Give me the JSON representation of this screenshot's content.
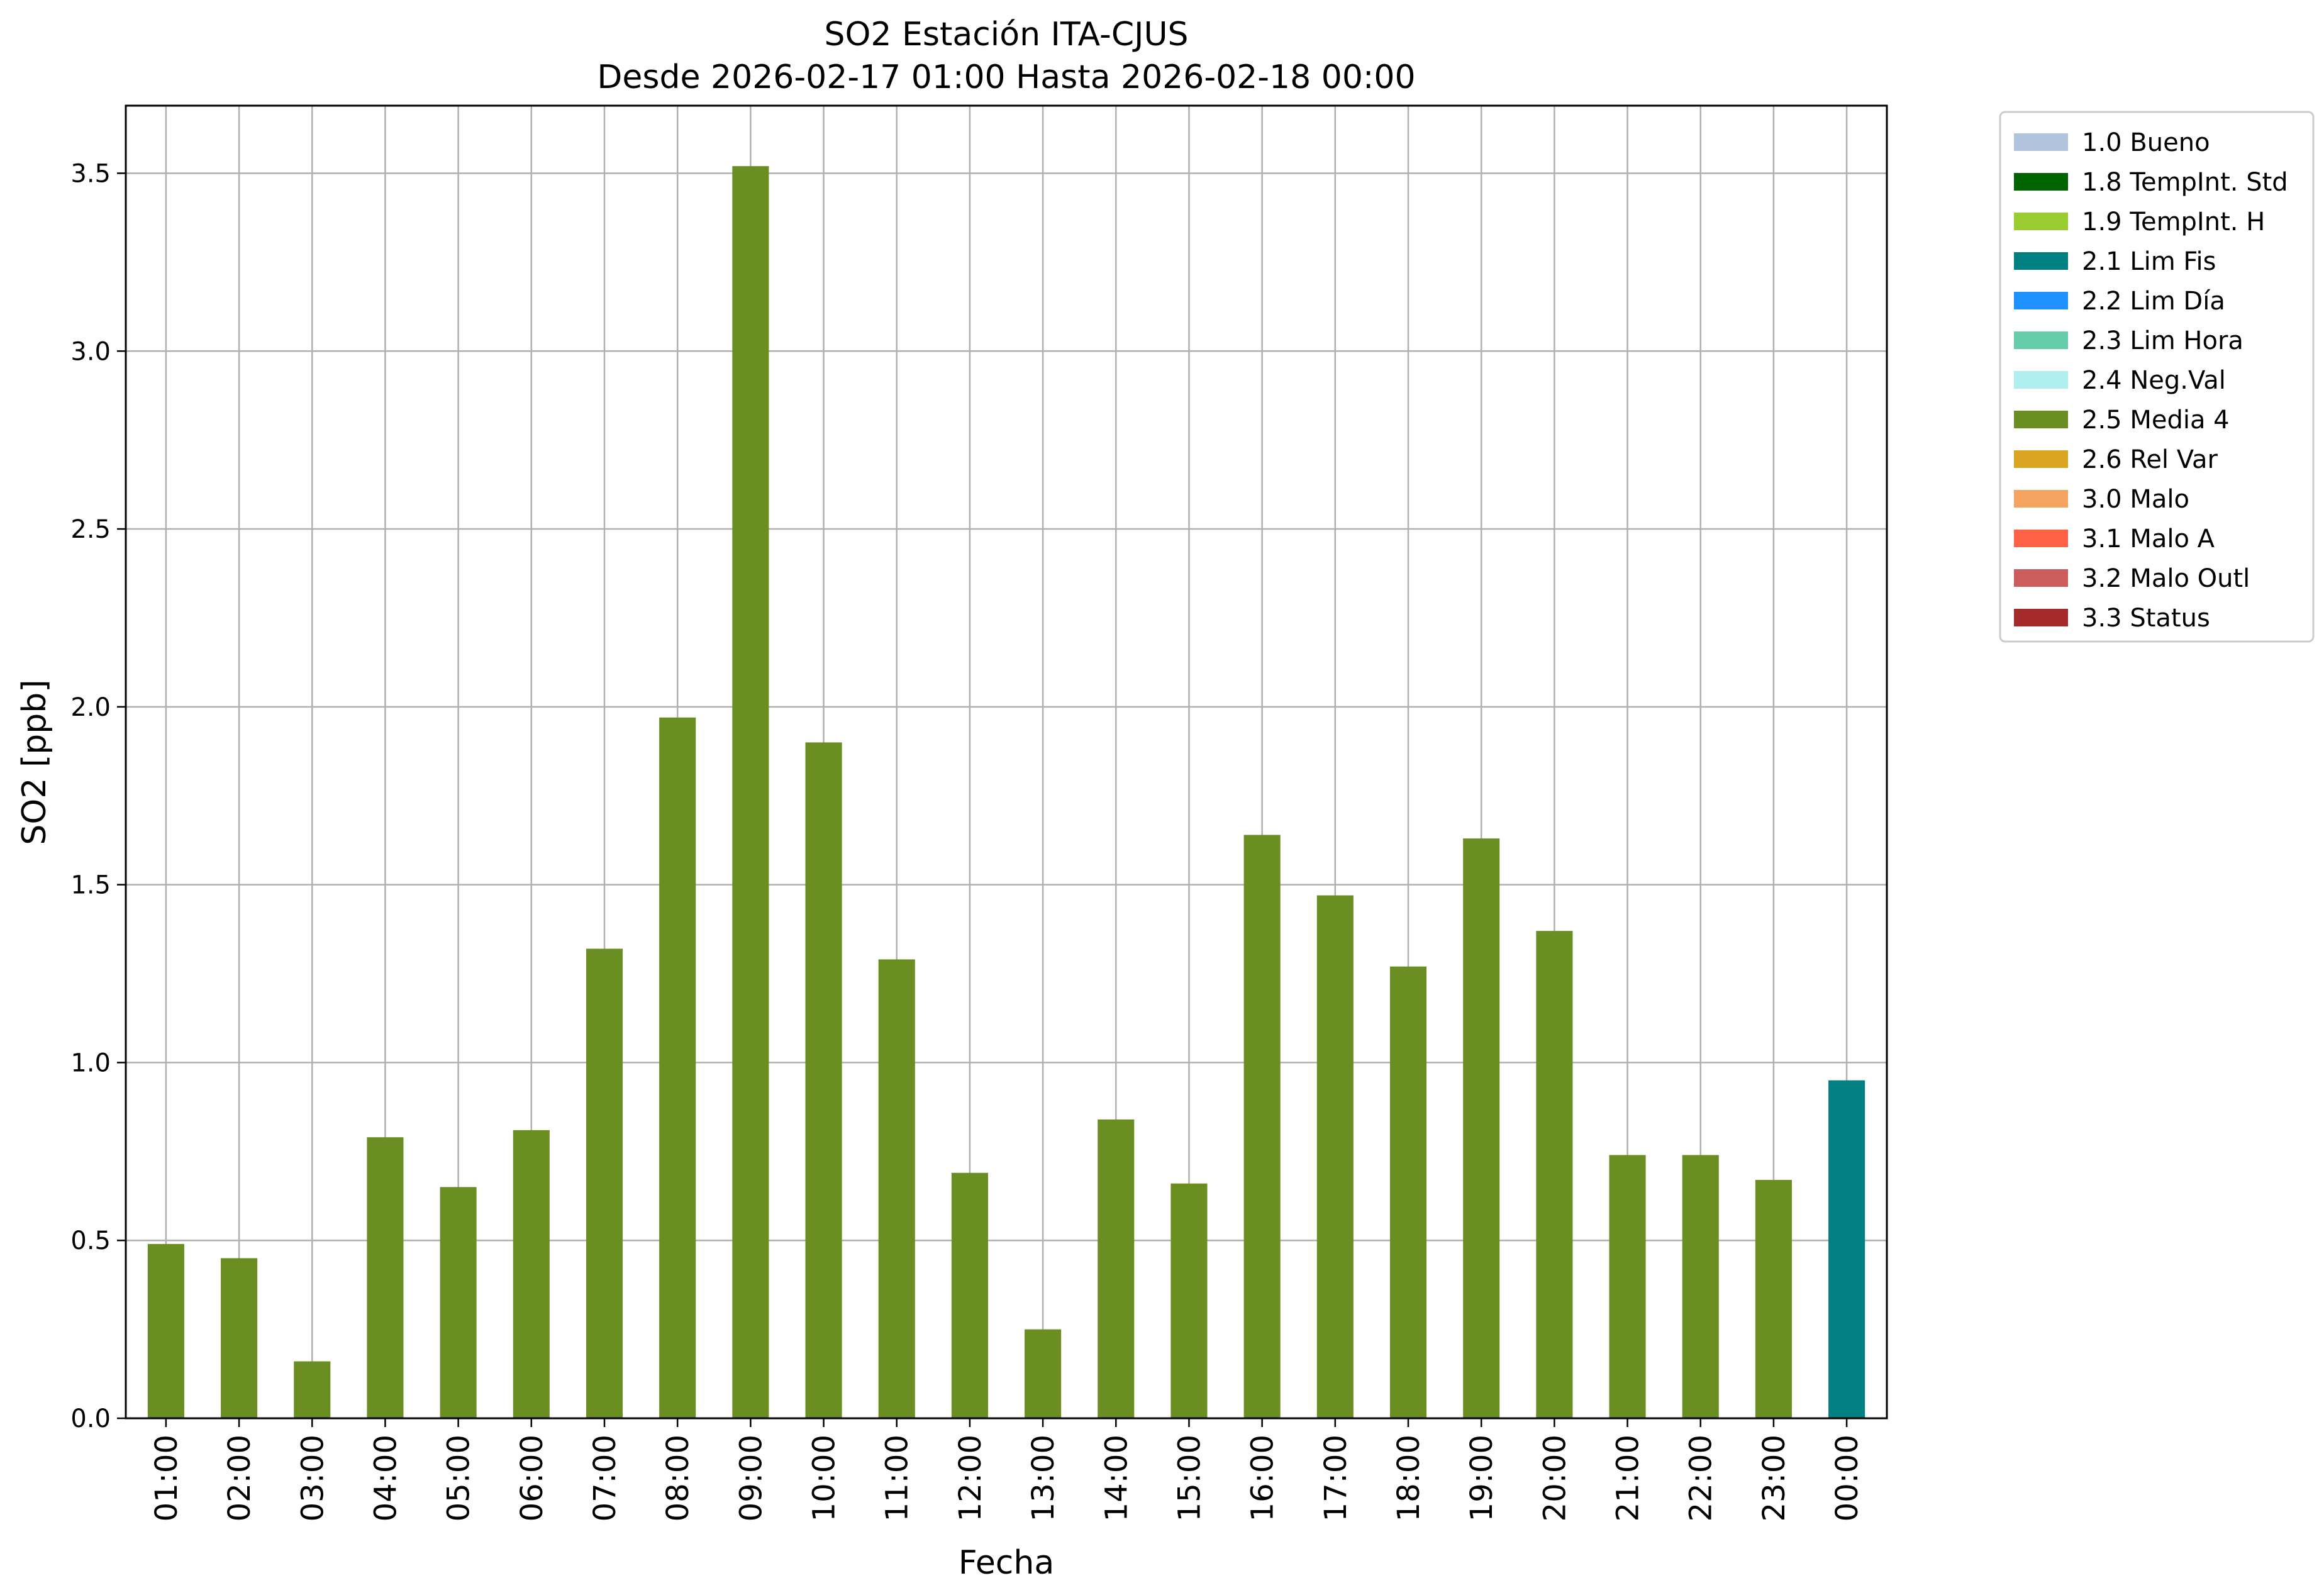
{
  "chart_data": {
    "type": "bar",
    "title": "SO2 Estación ITA-CJUS",
    "subtitle": "Desde 2026-02-17 01:00 Hasta 2026-02-18 00:00",
    "xlabel": "Fecha",
    "ylabel": "SO2 [ppb]",
    "ylim": [
      0,
      3.69
    ],
    "yticks": [
      "0.0",
      "0.5",
      "1.0",
      "1.5",
      "2.0",
      "2.5",
      "3.0",
      "3.5"
    ],
    "grid": true,
    "legend_position": "outside-top-right",
    "categories": [
      "01:00",
      "02:00",
      "03:00",
      "04:00",
      "05:00",
      "06:00",
      "07:00",
      "08:00",
      "09:00",
      "10:00",
      "11:00",
      "12:00",
      "13:00",
      "14:00",
      "15:00",
      "16:00",
      "17:00",
      "18:00",
      "19:00",
      "20:00",
      "21:00",
      "22:00",
      "23:00",
      "00:00"
    ],
    "values": [
      0.49,
      0.45,
      0.16,
      0.79,
      0.65,
      0.81,
      1.32,
      1.97,
      3.52,
      1.9,
      1.29,
      0.69,
      0.25,
      0.84,
      0.66,
      1.64,
      1.47,
      1.27,
      1.63,
      1.37,
      0.74,
      0.74,
      0.67,
      0.95
    ],
    "flags": [
      "2.5 Media 4",
      "2.5 Media 4",
      "2.5 Media 4",
      "2.5 Media 4",
      "2.5 Media 4",
      "2.5 Media 4",
      "2.5 Media 4",
      "2.5 Media 4",
      "2.5 Media 4",
      "2.5 Media 4",
      "2.5 Media 4",
      "2.5 Media 4",
      "2.5 Media 4",
      "2.5 Media 4",
      "2.5 Media 4",
      "2.5 Media 4",
      "2.5 Media 4",
      "2.5 Media 4",
      "2.5 Media 4",
      "2.5 Media 4",
      "2.5 Media 4",
      "2.5 Media 4",
      "2.5 Media 4",
      "2.1 Lim Fis"
    ],
    "legend": [
      {
        "label": "1.0 Bueno",
        "color": "#b0c4de"
      },
      {
        "label": "1.8 TempInt. Std",
        "color": "#006400"
      },
      {
        "label": "1.9 TempInt. H",
        "color": "#9acd32"
      },
      {
        "label": "2.1 Lim Fis",
        "color": "#008080"
      },
      {
        "label": "2.2 Lim Día",
        "color": "#1e90ff"
      },
      {
        "label": "2.3 Lim Hora",
        "color": "#66cdaa"
      },
      {
        "label": "2.4 Neg.Val",
        "color": "#afeeee"
      },
      {
        "label": "2.5 Media 4",
        "color": "#6b8e23"
      },
      {
        "label": "2.6 Rel Var",
        "color": "#daa520"
      },
      {
        "label": "3.0 Malo",
        "color": "#f4a460"
      },
      {
        "label": "3.1 Malo A",
        "color": "#ff6347"
      },
      {
        "label": "3.2 Malo Outl",
        "color": "#cd5c5c"
      },
      {
        "label": "3.3 Status",
        "color": "#a52a2a"
      }
    ]
  }
}
